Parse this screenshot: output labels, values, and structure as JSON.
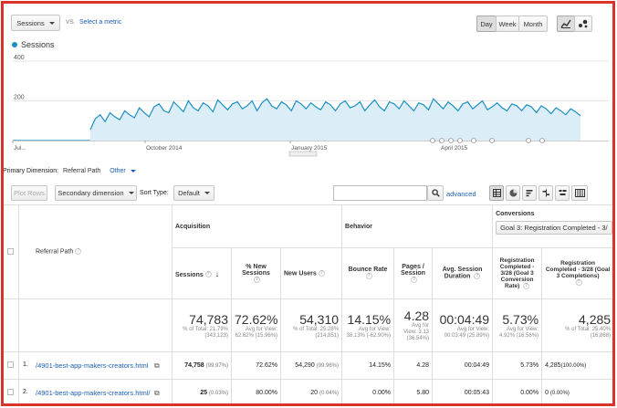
{
  "toolbar": {
    "metric_label": "Sessions",
    "vs_label": "VS.",
    "select_metric": "Select a metric",
    "day": "Day",
    "week": "Week",
    "month": "Month"
  },
  "chart_data": {
    "type": "area",
    "legend": "Sessions",
    "y_ticks": [
      "400",
      "200"
    ],
    "ylim": [
      0,
      400
    ],
    "x_tick_labels": [
      "Jul...",
      "October 2014",
      "January 2015",
      "April 2015"
    ],
    "values": [
      55,
      110,
      130,
      95,
      140,
      120,
      105,
      150,
      130,
      115,
      165,
      140,
      120,
      170,
      185,
      150,
      140,
      195,
      170,
      145,
      200,
      165,
      150,
      190,
      175,
      145,
      205,
      180,
      155,
      185,
      195,
      160,
      175,
      200,
      150,
      190,
      210,
      175,
      160,
      195,
      180,
      150,
      200,
      185,
      160,
      190,
      170,
      155,
      195,
      180,
      150,
      185,
      200,
      165,
      175,
      195,
      150,
      180,
      205,
      170,
      150,
      195,
      185,
      160,
      200,
      175,
      150,
      190,
      180,
      155,
      210,
      185,
      160,
      195,
      175,
      150,
      185,
      195,
      160,
      180,
      200,
      155,
      170,
      190,
      165,
      150,
      185,
      175,
      150,
      180,
      170,
      140,
      175,
      160,
      135,
      165,
      150,
      130,
      160,
      145,
      125
    ],
    "colors": {
      "line": "#1a8fc1",
      "fill": "#dbeef7"
    }
  },
  "dimension": {
    "label": "Primary Dimension:",
    "value": "Referral Path",
    "other": "Other"
  },
  "controls": {
    "plot_rows": "Plot Rows",
    "secondary": "Secondary dimension",
    "sort_label": "Sort Type:",
    "sort_value": "Default",
    "advanced": "advanced",
    "search_placeholder": ""
  },
  "table": {
    "group_acquisition": "Acquisition",
    "group_behavior": "Behavior",
    "group_conversions": "Conversions",
    "goal_select": "Goal 3: Registration Completed - 3/",
    "col_referral": "Referral Path",
    "col_sessions": "Sessions",
    "col_new_sessions": "% New Sessions",
    "col_new_users": "New Users",
    "col_bounce": "Bounce Rate",
    "col_pages": "Pages / Session",
    "col_duration": "Avg. Session Duration",
    "col_conv_rate": "Registration Completed - 3/28 (Goal 3 Conversion Rate)",
    "col_completions": "Registration Completed - 3/28 (Goal 3 Completions)",
    "totals": {
      "sessions": "74,783",
      "sessions_sub": "% of Total: 21.79% (343,123)",
      "new_sessions": "72.62%",
      "new_sessions_sub": "Avg for View: 62.62% (15.96%)",
      "new_users": "54,310",
      "new_users_sub": "% of Total: 25.28% (214,851)",
      "bounce": "14.15%",
      "bounce_sub": "Avg for View: 38.13% (-62.90%)",
      "pages": "4.28",
      "pages_sub": "Avg for View: 3.13 (36.54%)",
      "duration": "00:04:49",
      "duration_sub": "Avg for View: 00:03:49 (25.89%)",
      "conv_rate": "5.73%",
      "conv_rate_sub": "Avg for View: 4.92% (16.56%)",
      "completions": "4,285",
      "completions_sub": "% of Total: 25.40% (16,868)"
    },
    "rows": [
      {
        "index": "1.",
        "path": "/4901-best-app-makers-creators.html",
        "sessions": "74,758",
        "sessions_pct": "(99.97%)",
        "new_sessions": "72.62%",
        "new_users": "54,290",
        "new_users_pct": "(99.96%)",
        "bounce": "14.15%",
        "pages": "4.28",
        "duration": "00:04:49",
        "conv_rate": "5.73%",
        "completions": "4,285",
        "completions_pct": "(100.00%)"
      },
      {
        "index": "2.",
        "path": "/4901-best-app-makers-creators.html/",
        "sessions": "25",
        "sessions_pct": "(0.03%)",
        "new_sessions": "80.00%",
        "new_users": "20",
        "new_users_pct": "(0.04%)",
        "bounce": "0.00%",
        "pages": "5.80",
        "duration": "00:05:43",
        "conv_rate": "0.00%",
        "completions": "0",
        "completions_pct": "(0.00%)"
      }
    ]
  }
}
